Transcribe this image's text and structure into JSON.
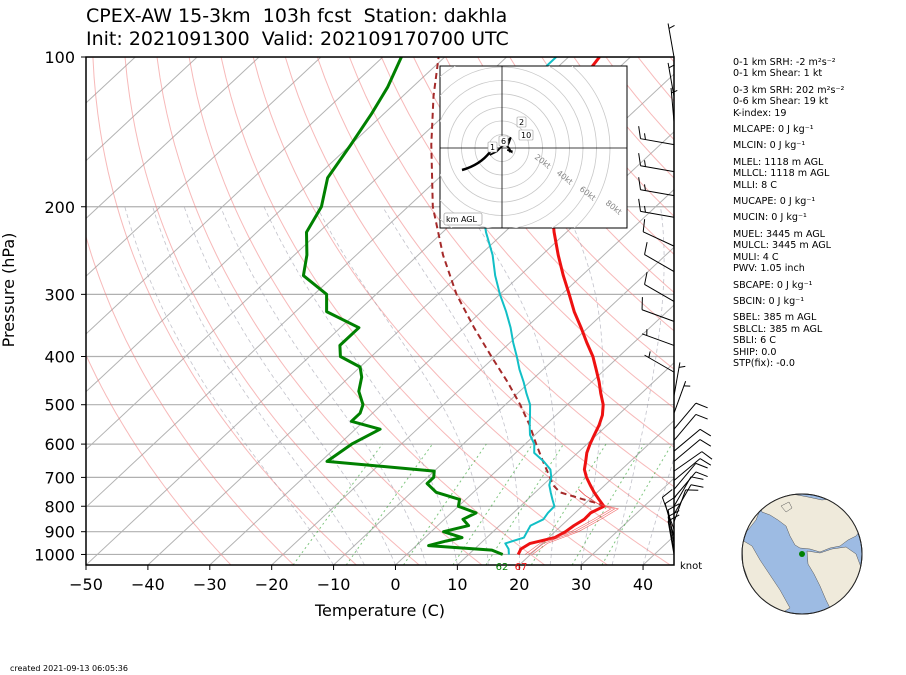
{
  "header": {
    "title_line1": "CPEX-AW 15-3km  103h fcst  Station: dakhla",
    "title_line2": "Init: 2021091300  Valid: 202109170700 UTC"
  },
  "footer": {
    "created": "created 2021-09-13 06:05:36"
  },
  "hodograph": {
    "ring_labels": [
      "20kt",
      "40kt",
      "60kt",
      "80kt"
    ],
    "height_labels": [
      "1",
      "6",
      "2",
      "10"
    ],
    "legend": "km AGL"
  },
  "barb_unit": "knot",
  "surface_labels": {
    "dewpoint": "62",
    "temperature": "67"
  },
  "indices": [
    "0-1 km SRH: -2 m²s⁻²",
    "0-1 km Shear: 1 kt",
    "0-3 km SRH: 202 m²s⁻²",
    "0-6 km Shear: 19 kt",
    "K-index: 19",
    "MLCAPE: 0 J kg⁻¹",
    "MLCIN: 0 J kg⁻¹",
    "MLEL: 1118 m AGL",
    "MLLCL: 1118 m AGL",
    "MLLI: 8 C",
    "MUCAPE: 0 J kg⁻¹",
    "MUCIN: 0 J kg⁻¹",
    "MUEL: 3445 m AGL",
    "MULCL: 3445 m AGL",
    "MULI: 4 C",
    "PWV: 1.05 inch",
    "SBCAPE: 0 J kg⁻¹",
    "SBCIN: 0 J kg⁻¹",
    "SBEL: 385 m AGL",
    "SBLCL: 385 m AGL",
    "SBLI: 6 C",
    "SHIP: 0.0",
    "STP(fix): -0.0"
  ],
  "chart_data": {
    "type": "skew-t",
    "xlabel": "Temperature (C)",
    "ylabel": "Pressure (hPa)",
    "xlim": [
      -50,
      45
    ],
    "ylim": [
      1050,
      100
    ],
    "y_scale": "log",
    "x_ticks": [
      -50,
      -40,
      -30,
      -20,
      -10,
      0,
      10,
      20,
      30,
      40
    ],
    "y_ticks": [
      100,
      200,
      300,
      400,
      500,
      600,
      700,
      800,
      900,
      1000
    ],
    "colors": {
      "temperature": "#ee1111",
      "dewpoint": "#008000",
      "wetbulb": "#12bfc6",
      "parcel": "#a52a2a",
      "dry_adiabat": "#f08080",
      "mixing_ratio": "#2ca02c",
      "isotherm": "#b3b3b3"
    },
    "series": [
      {
        "key": "temperature",
        "points": [
          [
            1000,
            18
          ],
          [
            975,
            17.5
          ],
          [
            950,
            18
          ],
          [
            925,
            21
          ],
          [
            900,
            21.7
          ],
          [
            875,
            22
          ],
          [
            850,
            22.6
          ],
          [
            825,
            22.5
          ],
          [
            800,
            23.5
          ],
          [
            775,
            21.5
          ],
          [
            750,
            19.5
          ],
          [
            725,
            17.6
          ],
          [
            700,
            15.7
          ],
          [
            675,
            14
          ],
          [
            650,
            12.8
          ],
          [
            625,
            11.5
          ],
          [
            600,
            10.5
          ],
          [
            575,
            9.6
          ],
          [
            550,
            8.7
          ],
          [
            525,
            7.5
          ],
          [
            500,
            5.8
          ],
          [
            475,
            3.5
          ],
          [
            450,
            1.2
          ],
          [
            425,
            -1.4
          ],
          [
            400,
            -4.2
          ],
          [
            375,
            -7.6
          ],
          [
            350,
            -11.1
          ],
          [
            325,
            -15
          ],
          [
            300,
            -18.8
          ],
          [
            275,
            -23
          ],
          [
            250,
            -27.4
          ],
          [
            225,
            -32
          ],
          [
            200,
            -36.8
          ],
          [
            175,
            -42
          ],
          [
            150,
            -47
          ],
          [
            135,
            -50.5
          ],
          [
            125,
            -52.5
          ],
          [
            110,
            -54
          ],
          [
            100,
            -55
          ]
        ]
      },
      {
        "key": "dewpoint",
        "points": [
          [
            1000,
            15.5
          ],
          [
            980,
            13
          ],
          [
            960,
            2
          ],
          [
            940,
            4
          ],
          [
            925,
            6
          ],
          [
            900,
            2
          ],
          [
            875,
            5
          ],
          [
            850,
            3
          ],
          [
            825,
            4
          ],
          [
            800,
            0
          ],
          [
            775,
            -1
          ],
          [
            750,
            -6
          ],
          [
            720,
            -9
          ],
          [
            700,
            -9
          ],
          [
            680,
            -10
          ],
          [
            650,
            -29
          ],
          [
            600,
            -28
          ],
          [
            560,
            -26
          ],
          [
            540,
            -32
          ],
          [
            520,
            -32
          ],
          [
            500,
            -33
          ],
          [
            470,
            -36
          ],
          [
            440,
            -38
          ],
          [
            420,
            -40
          ],
          [
            400,
            -45
          ],
          [
            380,
            -47
          ],
          [
            350,
            -47
          ],
          [
            325,
            -55
          ],
          [
            300,
            -58
          ],
          [
            275,
            -65
          ],
          [
            250,
            -68
          ],
          [
            225,
            -72
          ],
          [
            200,
            -74
          ],
          [
            175,
            -78
          ],
          [
            150,
            -80
          ],
          [
            130,
            -82
          ],
          [
            115,
            -84
          ],
          [
            100,
            -87
          ]
        ]
      },
      {
        "key": "wetbulb",
        "points": [
          [
            1000,
            16.5
          ],
          [
            975,
            15.5
          ],
          [
            950,
            14
          ],
          [
            925,
            16
          ],
          [
            900,
            15.5
          ],
          [
            875,
            15
          ],
          [
            850,
            16
          ],
          [
            825,
            15.6
          ],
          [
            800,
            15.5
          ],
          [
            775,
            14
          ],
          [
            750,
            12.5
          ],
          [
            725,
            11
          ],
          [
            700,
            10
          ],
          [
            675,
            8.5
          ],
          [
            650,
            6
          ],
          [
            625,
            3
          ],
          [
            600,
            1.5
          ],
          [
            575,
            -0.8
          ],
          [
            550,
            -2.5
          ],
          [
            525,
            -4.2
          ],
          [
            500,
            -6
          ],
          [
            475,
            -8.5
          ],
          [
            450,
            -11
          ],
          [
            425,
            -13.8
          ],
          [
            400,
            -16.5
          ],
          [
            375,
            -19.5
          ],
          [
            350,
            -22.5
          ],
          [
            325,
            -26
          ],
          [
            300,
            -30
          ],
          [
            275,
            -34
          ],
          [
            250,
            -38
          ],
          [
            225,
            -43
          ],
          [
            200,
            -48
          ],
          [
            175,
            -53
          ],
          [
            150,
            -58
          ],
          [
            135,
            -61
          ],
          [
            125,
            -62
          ],
          [
            110,
            -62
          ],
          [
            100,
            -62
          ]
        ]
      },
      {
        "key": "parcel",
        "points": [
          [
            800,
            23.6
          ],
          [
            787,
            21.5
          ],
          [
            775,
            19
          ],
          [
            750,
            14
          ],
          [
            725,
            11.6
          ],
          [
            700,
            9.8
          ],
          [
            650,
            5.9
          ],
          [
            600,
            1.8
          ],
          [
            550,
            -2.5
          ],
          [
            500,
            -7.6
          ],
          [
            450,
            -13.6
          ],
          [
            400,
            -20.6
          ],
          [
            350,
            -28.4
          ],
          [
            300,
            -37
          ],
          [
            250,
            -46
          ],
          [
            200,
            -56
          ],
          [
            150,
            -67
          ],
          [
            120,
            -75
          ],
          [
            100,
            -81
          ]
        ]
      }
    ],
    "barbs": [
      {
        "p": 100,
        "dir": 350,
        "spd": 5
      },
      {
        "p": 120,
        "dir": 350,
        "spd": 5
      },
      {
        "p": 135,
        "dir": 355,
        "spd": 5
      },
      {
        "p": 150,
        "dir": 280,
        "spd": 15
      },
      {
        "p": 170,
        "dir": 280,
        "spd": 15
      },
      {
        "p": 190,
        "dir": 280,
        "spd": 15
      },
      {
        "p": 210,
        "dir": 280,
        "spd": 15
      },
      {
        "p": 240,
        "dir": 295,
        "spd": 10
      },
      {
        "p": 270,
        "dir": 300,
        "spd": 10
      },
      {
        "p": 310,
        "dir": 300,
        "spd": 10
      },
      {
        "p": 340,
        "dir": 290,
        "spd": 10
      },
      {
        "p": 380,
        "dir": 290,
        "spd": 5
      },
      {
        "p": 430,
        "dir": 300,
        "spd": 5
      },
      {
        "p": 480,
        "dir": 10,
        "spd": 5
      },
      {
        "p": 520,
        "dir": 20,
        "spd": 5
      },
      {
        "p": 560,
        "dir": 40,
        "spd": 10
      },
      {
        "p": 590,
        "dir": 40,
        "spd": 10
      },
      {
        "p": 620,
        "dir": 50,
        "spd": 10
      },
      {
        "p": 650,
        "dir": 50,
        "spd": 10
      },
      {
        "p": 680,
        "dir": 55,
        "spd": 10
      },
      {
        "p": 710,
        "dir": 50,
        "spd": 10
      },
      {
        "p": 740,
        "dir": 40,
        "spd": 10
      },
      {
        "p": 770,
        "dir": 40,
        "spd": 10
      },
      {
        "p": 800,
        "dir": 30,
        "spd": 10
      },
      {
        "p": 830,
        "dir": 30,
        "spd": 10
      },
      {
        "p": 860,
        "dir": 20,
        "spd": 10
      },
      {
        "p": 890,
        "dir": 340,
        "spd": 10
      },
      {
        "p": 920,
        "dir": 345,
        "spd": 10
      },
      {
        "p": 950,
        "dir": 350,
        "spd": 10
      },
      {
        "p": 980,
        "dir": 350,
        "spd": 10
      },
      {
        "p": 1000,
        "dir": 350,
        "spd": 10
      }
    ],
    "hodograph": {
      "rings_kt": [
        10,
        20,
        30,
        40,
        50,
        60,
        70,
        80
      ],
      "points_kt": [
        [
          -7,
          -4
        ],
        [
          -3,
          -2
        ],
        [
          -1,
          0
        ],
        [
          0,
          1
        ],
        [
          2,
          2
        ],
        [
          3,
          4
        ],
        [
          5,
          6
        ],
        [
          4,
          3
        ],
        [
          3,
          1
        ],
        [
          4,
          0
        ],
        [
          5,
          -2
        ],
        [
          3,
          -1
        ],
        [
          6,
          -2
        ],
        [
          4,
          -2
        ]
      ]
    },
    "globe": {
      "marker_lat": 23.7,
      "marker_lon": -15.9,
      "marker_color": "#008000"
    }
  }
}
